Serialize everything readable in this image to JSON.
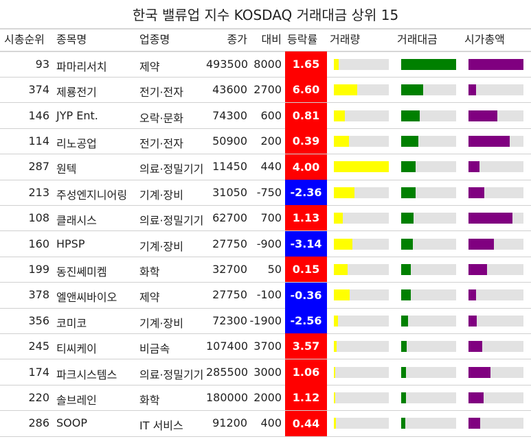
{
  "title": "한국 밸류업 지수 KOSDAQ 거래대금 상위 15",
  "columns": [
    "시총순위",
    "종목명",
    "업종명",
    "종가",
    "대비",
    "등락률",
    "거래량",
    "거래대금",
    "시가총액"
  ],
  "colors": {
    "up": "#ff0000",
    "down": "#0000ff",
    "volume": "#ffff00",
    "value": "#008000",
    "mcap": "#800080",
    "track": "#e2e2e2"
  },
  "chart_data": {
    "type": "table",
    "rows": [
      {
        "rank": "93",
        "name": "파마리서치",
        "sector": "제약",
        "close": "493500",
        "change": "8000",
        "rate": "1.65",
        "rate_value": 1.65,
        "volume": 0.09,
        "value": 1.0,
        "mcap": 1.0
      },
      {
        "rank": "374",
        "name": "제룡전기",
        "sector": "전기·전자",
        "close": "43600",
        "change": "2700",
        "rate": "6.60",
        "rate_value": 6.6,
        "volume": 0.42,
        "value": 0.4,
        "mcap": 0.14
      },
      {
        "rank": "146",
        "name": "JYP Ent.",
        "sector": "오락·문화",
        "close": "74300",
        "change": "600",
        "rate": "0.81",
        "rate_value": 0.81,
        "volume": 0.2,
        "value": 0.34,
        "mcap": 0.52
      },
      {
        "rank": "114",
        "name": "리노공업",
        "sector": "전기·전자",
        "close": "50900",
        "change": "200",
        "rate": "0.39",
        "rate_value": 0.39,
        "volume": 0.27,
        "value": 0.31,
        "mcap": 0.75
      },
      {
        "rank": "287",
        "name": "원텍",
        "sector": "의료·정밀기기",
        "close": "11450",
        "change": "440",
        "rate": "4.00",
        "rate_value": 4.0,
        "volume": 1.0,
        "value": 0.26,
        "mcap": 0.2
      },
      {
        "rank": "213",
        "name": "주성엔지니어링",
        "sector": "기계·장비",
        "close": "31050",
        "change": "-750",
        "rate": "-2.36",
        "rate_value": -2.36,
        "volume": 0.38,
        "value": 0.26,
        "mcap": 0.29
      },
      {
        "rank": "108",
        "name": "클래시스",
        "sector": "의료·정밀기기",
        "close": "62700",
        "change": "700",
        "rate": "1.13",
        "rate_value": 1.13,
        "volume": 0.16,
        "value": 0.22,
        "mcap": 0.8
      },
      {
        "rank": "160",
        "name": "HPSP",
        "sector": "기계·장비",
        "close": "27750",
        "change": "-900",
        "rate": "-3.14",
        "rate_value": -3.14,
        "volume": 0.34,
        "value": 0.21,
        "mcap": 0.46
      },
      {
        "rank": "199",
        "name": "동진쎄미켐",
        "sector": "화학",
        "close": "32700",
        "change": "50",
        "rate": "0.15",
        "rate_value": 0.15,
        "volume": 0.25,
        "value": 0.18,
        "mcap": 0.34
      },
      {
        "rank": "378",
        "name": "엘앤씨바이오",
        "sector": "제약",
        "close": "27750",
        "change": "-100",
        "rate": "-0.36",
        "rate_value": -0.36,
        "volume": 0.29,
        "value": 0.17,
        "mcap": 0.14
      },
      {
        "rank": "356",
        "name": "코미코",
        "sector": "기계·장비",
        "close": "72300",
        "change": "-1900",
        "rate": "-2.56",
        "rate_value": -2.56,
        "volume": 0.08,
        "value": 0.13,
        "mcap": 0.15
      },
      {
        "rank": "245",
        "name": "티씨케이",
        "sector": "비금속",
        "close": "107400",
        "change": "3700",
        "rate": "3.57",
        "rate_value": 3.57,
        "volume": 0.05,
        "value": 0.1,
        "mcap": 0.25
      },
      {
        "rank": "174",
        "name": "파크시스템스",
        "sector": "의료·정밀기기",
        "close": "285500",
        "change": "3000",
        "rate": "1.06",
        "rate_value": 1.06,
        "volume": 0.02,
        "value": 0.09,
        "mcap": 0.4
      },
      {
        "rank": "220",
        "name": "솔브레인",
        "sector": "화학",
        "close": "180000",
        "change": "2000",
        "rate": "1.12",
        "rate_value": 1.12,
        "volume": 0.03,
        "value": 0.09,
        "mcap": 0.28
      },
      {
        "rank": "286",
        "name": "SOOP",
        "sector": "IT 서비스",
        "close": "91200",
        "change": "400",
        "rate": "0.44",
        "rate_value": 0.44,
        "volume": 0.04,
        "value": 0.08,
        "mcap": 0.21
      }
    ]
  }
}
